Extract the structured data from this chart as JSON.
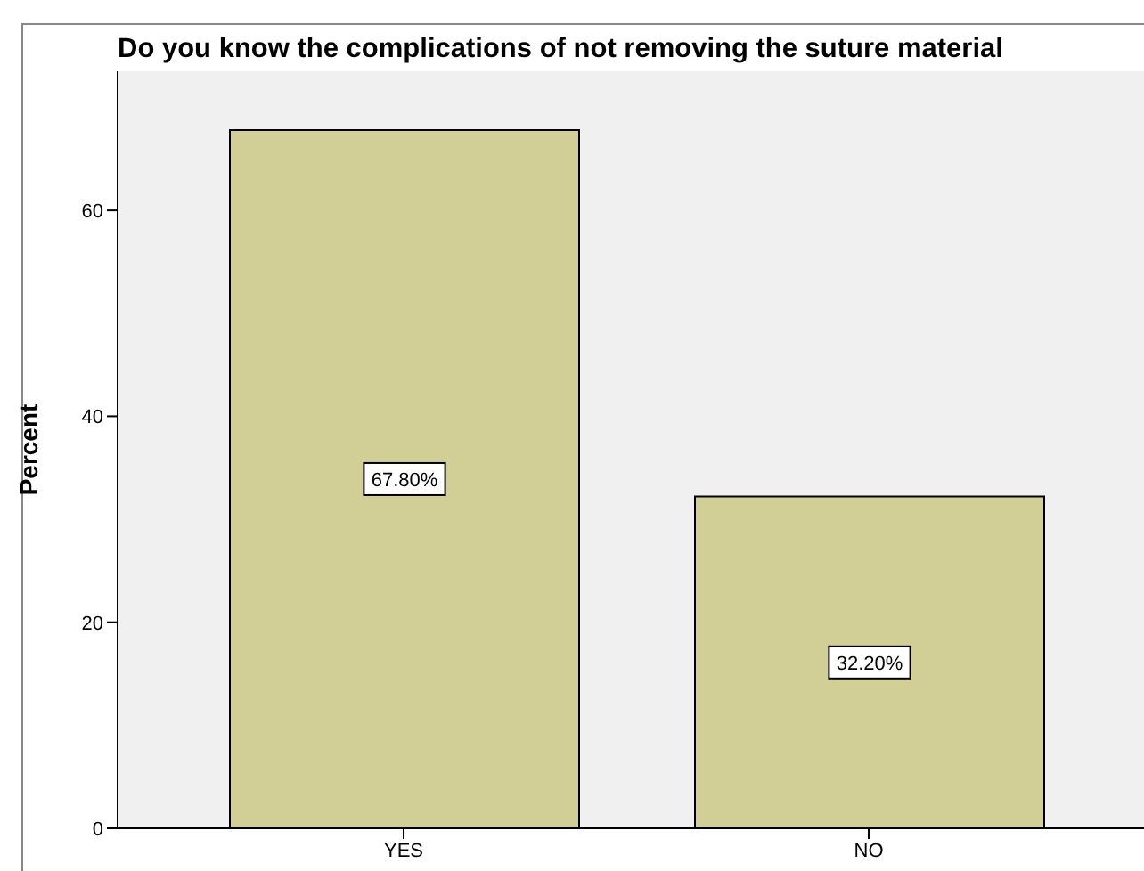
{
  "chart_data": {
    "type": "bar",
    "title": "Do you know the complications of not removing the suture material",
    "ylabel": "Percent",
    "categories": [
      "YES",
      "NO"
    ],
    "values": [
      67.8,
      32.2
    ],
    "value_labels": [
      "67.80%",
      "32.20%"
    ],
    "color": "#d2cf96",
    "ylim": [
      0,
      73.5
    ],
    "yticks": [
      0,
      20,
      40,
      60
    ],
    "grid": false,
    "legend": false
  }
}
